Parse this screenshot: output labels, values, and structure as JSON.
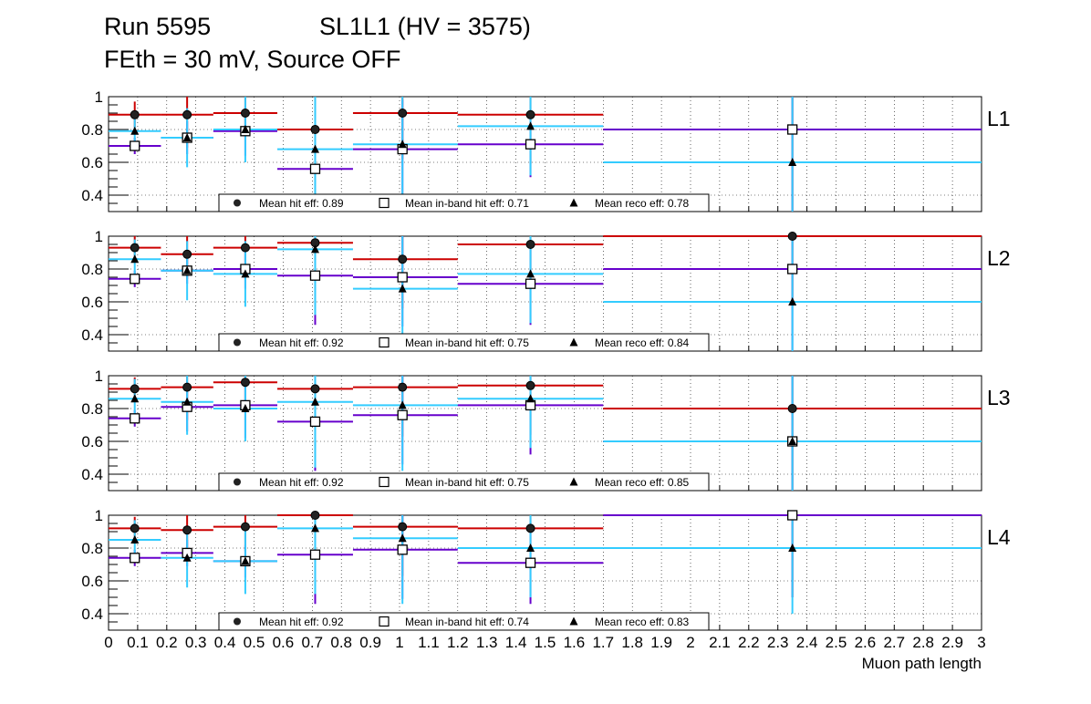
{
  "header": {
    "run": "Run 5595",
    "chamber": "SL1L1 (HV = 3575)",
    "conditions": "FEth = 30 mV, Source OFF"
  },
  "chart_data": {
    "type": "scatter",
    "xlabel": "Muon path length",
    "xlim": [
      0,
      3
    ],
    "ylim": [
      0.3,
      1.0
    ],
    "grid": true,
    "yticks": [
      "0.4",
      "0.6",
      "0.8",
      "1"
    ],
    "xticks": [
      "0",
      "0.1",
      "0.2",
      "0.3",
      "0.4",
      "0.5",
      "0.6",
      "0.7",
      "0.8",
      "0.9",
      "1",
      "1.1",
      "1.2",
      "1.3",
      "1.4",
      "1.5",
      "1.6",
      "1.7",
      "1.8",
      "1.9",
      "2",
      "2.1",
      "2.2",
      "2.3",
      "2.4",
      "2.5",
      "2.6",
      "2.7",
      "2.8",
      "2.9",
      "3"
    ],
    "colors": {
      "hit": "#cc0000",
      "inband": "#6600cc",
      "reco": "#33ccff",
      "marker": "#000000"
    },
    "bins": [
      {
        "x": 0.09,
        "xlo": 0.0,
        "xhi": 0.18
      },
      {
        "x": 0.27,
        "xlo": 0.18,
        "xhi": 0.36
      },
      {
        "x": 0.47,
        "xlo": 0.36,
        "xhi": 0.58
      },
      {
        "x": 0.71,
        "xlo": 0.58,
        "xhi": 0.84
      },
      {
        "x": 1.01,
        "xlo": 0.84,
        "xhi": 1.2
      },
      {
        "x": 1.45,
        "xlo": 1.2,
        "xhi": 1.7
      },
      {
        "x": 2.35,
        "xlo": 1.7,
        "xhi": 3.0
      }
    ],
    "panels": [
      {
        "label": "L1",
        "legend": [
          "Mean hit  eff: 0.89",
          "Mean in-band hit eff: 0.71",
          "Mean reco eff: 0.78"
        ],
        "series": [
          {
            "name": "Mean hit  eff",
            "values": [
              0.89,
              0.89,
              0.9,
              0.8,
              0.9,
              0.89,
              0.8
            ],
            "errors": [
              0.08,
              0.2,
              0.15,
              0.5,
              0.28,
              0.3,
              0.5
            ]
          },
          {
            "name": "Mean in-band hit eff",
            "values": [
              0.7,
              0.75,
              0.79,
              0.56,
              0.68,
              0.71,
              0.8
            ],
            "errors": [
              0.05,
              0.1,
              0.15,
              0.2,
              0.3,
              0.2,
              0.5
            ]
          },
          {
            "name": "Mean reco eff",
            "values": [
              0.79,
              0.75,
              0.8,
              0.68,
              0.71,
              0.82,
              0.6
            ],
            "errors": [
              0.12,
              0.18,
              0.2,
              0.4,
              0.35,
              0.3,
              0.4
            ]
          }
        ]
      },
      {
        "label": "L2",
        "legend": [
          "Mean hit  eff: 0.92",
          "Mean in-band hit eff: 0.75",
          "Mean reco eff: 0.84"
        ],
        "series": [
          {
            "name": "Mean hit  eff",
            "values": [
              0.93,
              0.89,
              0.93,
              0.96,
              0.86,
              0.95,
              1.0
            ],
            "errors": [
              0.07,
              0.15,
              0.15,
              0.4,
              0.3,
              0.25,
              0.4
            ]
          },
          {
            "name": "Mean in-band hit eff",
            "values": [
              0.74,
              0.79,
              0.8,
              0.76,
              0.75,
              0.71,
              0.8
            ],
            "errors": [
              0.05,
              0.08,
              0.12,
              0.3,
              0.3,
              0.25,
              0.5
            ]
          },
          {
            "name": "Mean reco eff",
            "values": [
              0.86,
              0.79,
              0.77,
              0.92,
              0.68,
              0.77,
              0.6
            ],
            "errors": [
              0.12,
              0.18,
              0.2,
              0.4,
              0.4,
              0.3,
              0.4
            ]
          }
        ]
      },
      {
        "label": "L3",
        "legend": [
          "Mean hit  eff: 0.92",
          "Mean in-band hit eff: 0.75",
          "Mean reco eff: 0.85"
        ],
        "series": [
          {
            "name": "Mean hit  eff",
            "values": [
              0.92,
              0.93,
              0.96,
              0.92,
              0.93,
              0.94,
              0.8
            ],
            "errors": [
              0.07,
              0.2,
              0.15,
              0.4,
              0.3,
              0.3,
              0.5
            ]
          },
          {
            "name": "Mean in-band hit eff",
            "values": [
              0.74,
              0.81,
              0.82,
              0.72,
              0.76,
              0.82,
              0.6
            ],
            "errors": [
              0.05,
              0.15,
              0.2,
              0.3,
              0.3,
              0.3,
              0.5
            ]
          },
          {
            "name": "Mean reco eff",
            "values": [
              0.86,
              0.84,
              0.8,
              0.84,
              0.82,
              0.86,
              0.6
            ],
            "errors": [
              0.12,
              0.2,
              0.2,
              0.4,
              0.4,
              0.3,
              0.4
            ]
          }
        ]
      },
      {
        "label": "L4",
        "legend": [
          "Mean hit  eff: 0.92",
          "Mean in-band hit eff: 0.74",
          "Mean reco eff: 0.83"
        ],
        "series": [
          {
            "name": "Mean hit  eff",
            "values": [
              0.92,
              0.91,
              0.93,
              1.0,
              0.93,
              0.92,
              1.0
            ],
            "errors": [
              0.07,
              0.15,
              0.15,
              0.4,
              0.3,
              0.25,
              0.5
            ]
          },
          {
            "name": "Mean in-band hit eff",
            "values": [
              0.74,
              0.77,
              0.72,
              0.76,
              0.79,
              0.71,
              1.0
            ],
            "errors": [
              0.05,
              0.08,
              0.1,
              0.3,
              0.3,
              0.25,
              0.5
            ]
          },
          {
            "name": "Mean reco eff",
            "values": [
              0.85,
              0.74,
              0.72,
              0.92,
              0.86,
              0.8,
              0.8
            ],
            "errors": [
              0.12,
              0.18,
              0.2,
              0.4,
              0.4,
              0.3,
              0.4
            ]
          }
        ]
      }
    ]
  }
}
